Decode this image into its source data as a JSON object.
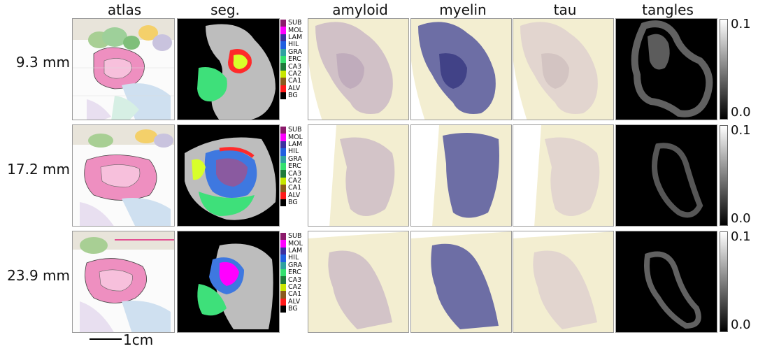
{
  "columns": [
    "atlas",
    "seg.",
    "amyloid",
    "myelin",
    "tau",
    "tangles"
  ],
  "rows": [
    {
      "label": "9.3 mm"
    },
    {
      "label": "17.2 mm"
    },
    {
      "label": "23.9 mm"
    }
  ],
  "legend": [
    {
      "label": "SUB",
      "color": "#8b1a6b"
    },
    {
      "label": "MOL",
      "color": "#ff00ff"
    },
    {
      "label": "LAM",
      "color": "#3c2fa0"
    },
    {
      "label": "HIL",
      "color": "#1f5fe0"
    },
    {
      "label": "GRA",
      "color": "#2ea2a0"
    },
    {
      "label": "ERC",
      "color": "#33e06f"
    },
    {
      "label": "CA3",
      "color": "#1e7a3a"
    },
    {
      "label": "CA2",
      "color": "#c8e600"
    },
    {
      "label": "CA1",
      "color": "#8a5a1c"
    },
    {
      "label": "ALV",
      "color": "#ff1a1a"
    },
    {
      "label": "BG",
      "color": "#000000"
    }
  ],
  "colorbar": {
    "max_label": "0.1",
    "min_label": "0.0"
  },
  "scalebar": {
    "label": "1cm"
  },
  "colors": {
    "stain_bg": "#f3eed1",
    "amyloid_tissue": "#c8b5c4",
    "myelin_tissue": "#55579e",
    "tau_tissue": "#ded0cf"
  }
}
